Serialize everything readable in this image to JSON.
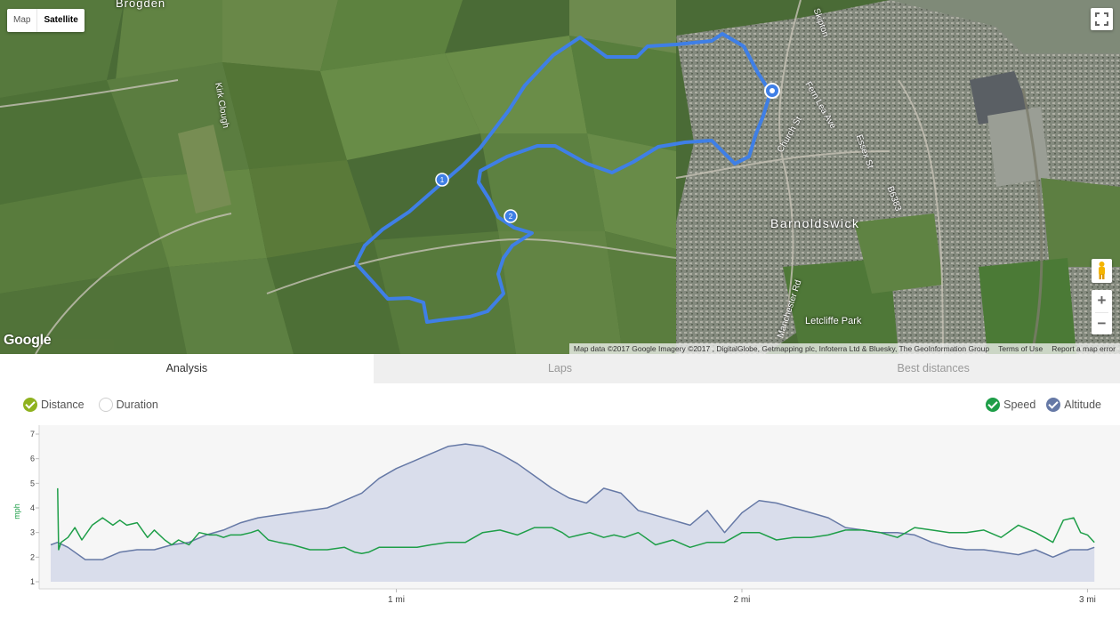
{
  "map": {
    "type_control": {
      "map_label": "Map",
      "satellite_label": "Satellite",
      "selected": "Satellite"
    },
    "logo_text": "Google",
    "attribution": {
      "data": "Map data ©2017 Google Imagery ©2017 , DigitalGlobe, Getmapping plc, Infoterra Ltd & Bluesky, The GeoInformation Group",
      "terms": "Terms of Use",
      "report": "Report a map error"
    },
    "place_labels": {
      "brogden": "Brogden",
      "kirk_clough": "Kirk Clough",
      "barnoldswick": "Barnoldswick",
      "letcliffe_park": "Letcliffe Park",
      "manchester_rd": "Manchester Rd",
      "church_st": "Church St",
      "fern_lea_ave": "Fern Lea Ave",
      "essex_st": "Essex St",
      "b6383": "B6383",
      "skipton": "Skipton"
    },
    "markers": [
      {
        "label": "1"
      },
      {
        "label": "2"
      }
    ],
    "zoom_in": "+",
    "zoom_out": "−",
    "icons": [
      "fullscreen-icon",
      "pegman-icon",
      "start-pin-icon"
    ],
    "route_color": "#3f7fe6"
  },
  "tabs": [
    {
      "label": "Analysis",
      "active": true
    },
    {
      "label": "Laps",
      "active": false
    },
    {
      "label": "Best distances",
      "active": false
    }
  ],
  "chart_controls": {
    "axis_mode": [
      {
        "label": "Distance",
        "checked": true,
        "color": "#8fb21f"
      },
      {
        "label": "Duration",
        "checked": false,
        "color": "#ffffff"
      }
    ],
    "series_toggles": [
      {
        "label": "Speed",
        "checked": true,
        "color": "#1e9e48"
      },
      {
        "label": "Altitude",
        "checked": true,
        "color": "#6679a6"
      }
    ]
  },
  "chart_data": {
    "type": "line",
    "ylabel": "mph",
    "ylim": [
      1,
      7
    ],
    "yticks": [
      1,
      2,
      3,
      4,
      5,
      6,
      7
    ],
    "xlim": [
      0,
      3.04
    ],
    "xticks": [
      {
        "value": 1,
        "label": "1 mi"
      },
      {
        "value": 2,
        "label": "2 mi"
      },
      {
        "value": 3,
        "label": "3 mi"
      }
    ],
    "grid": false,
    "series": [
      {
        "name": "Speed",
        "color": "#1e9e48",
        "x": [
          0.02,
          0.023,
          0.03,
          0.05,
          0.07,
          0.09,
          0.12,
          0.15,
          0.18,
          0.2,
          0.22,
          0.25,
          0.28,
          0.3,
          0.33,
          0.35,
          0.37,
          0.4,
          0.43,
          0.46,
          0.48,
          0.5,
          0.52,
          0.55,
          0.58,
          0.6,
          0.63,
          0.66,
          0.7,
          0.75,
          0.8,
          0.85,
          0.88,
          0.9,
          0.92,
          0.95,
          0.97,
          1.0,
          1.03,
          1.06,
          1.1,
          1.15,
          1.2,
          1.25,
          1.3,
          1.35,
          1.4,
          1.45,
          1.48,
          1.5,
          1.53,
          1.56,
          1.6,
          1.63,
          1.66,
          1.7,
          1.75,
          1.8,
          1.85,
          1.9,
          1.95,
          2.0,
          2.05,
          2.1,
          2.15,
          2.2,
          2.25,
          2.3,
          2.35,
          2.4,
          2.45,
          2.5,
          2.55,
          2.6,
          2.65,
          2.7,
          2.75,
          2.8,
          2.85,
          2.9,
          2.93,
          2.96,
          2.98,
          3.0,
          3.02
        ],
        "values": [
          4.8,
          2.3,
          2.6,
          2.8,
          3.2,
          2.7,
          3.3,
          3.6,
          3.3,
          3.5,
          3.3,
          3.4,
          2.8,
          3.1,
          2.7,
          2.5,
          2.7,
          2.5,
          3.0,
          2.9,
          2.9,
          2.8,
          2.9,
          2.9,
          3.0,
          3.1,
          2.7,
          2.6,
          2.5,
          2.3,
          2.3,
          2.4,
          2.2,
          2.15,
          2.2,
          2.4,
          2.4,
          2.4,
          2.4,
          2.4,
          2.5,
          2.6,
          2.6,
          3.0,
          3.1,
          2.9,
          3.2,
          3.2,
          3.0,
          2.8,
          2.9,
          3.0,
          2.8,
          2.9,
          2.8,
          3.0,
          2.5,
          2.7,
          2.4,
          2.6,
          2.6,
          3.0,
          3.0,
          2.7,
          2.8,
          2.8,
          2.9,
          3.1,
          3.1,
          3.0,
          2.8,
          3.2,
          3.1,
          3.0,
          3.0,
          3.1,
          2.8,
          3.3,
          3.0,
          2.6,
          3.5,
          3.6,
          3.0,
          2.9,
          2.6
        ]
      },
      {
        "name": "Altitude",
        "color": "#6679a6",
        "fill": "#d9ddeb",
        "x": [
          0.0,
          0.02,
          0.05,
          0.1,
          0.15,
          0.2,
          0.25,
          0.3,
          0.35,
          0.4,
          0.45,
          0.5,
          0.55,
          0.6,
          0.65,
          0.7,
          0.75,
          0.8,
          0.85,
          0.9,
          0.95,
          1.0,
          1.05,
          1.1,
          1.15,
          1.2,
          1.25,
          1.3,
          1.35,
          1.4,
          1.45,
          1.5,
          1.55,
          1.6,
          1.65,
          1.7,
          1.75,
          1.8,
          1.85,
          1.9,
          1.95,
          2.0,
          2.05,
          2.1,
          2.15,
          2.2,
          2.25,
          2.3,
          2.35,
          2.4,
          2.45,
          2.5,
          2.55,
          2.6,
          2.65,
          2.7,
          2.75,
          2.8,
          2.85,
          2.9,
          2.95,
          3.0,
          3.02
        ],
        "values": [
          2.5,
          2.6,
          2.4,
          1.9,
          1.9,
          2.2,
          2.3,
          2.3,
          2.5,
          2.6,
          2.9,
          3.1,
          3.4,
          3.6,
          3.7,
          3.8,
          3.9,
          4.0,
          4.3,
          4.6,
          5.2,
          5.6,
          5.9,
          6.2,
          6.5,
          6.6,
          6.5,
          6.2,
          5.8,
          5.3,
          4.8,
          4.4,
          4.2,
          4.8,
          4.6,
          3.9,
          3.7,
          3.5,
          3.3,
          3.9,
          3.0,
          3.8,
          4.3,
          4.2,
          4.0,
          3.8,
          3.6,
          3.2,
          3.1,
          3.0,
          3.0,
          2.9,
          2.6,
          2.4,
          2.3,
          2.3,
          2.2,
          2.1,
          2.3,
          2.0,
          2.3,
          2.3,
          2.4
        ]
      }
    ]
  }
}
